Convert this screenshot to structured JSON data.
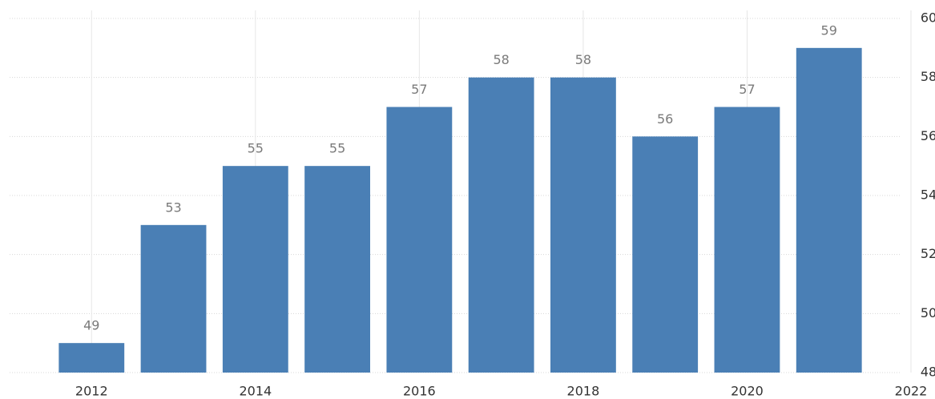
{
  "chart_data": {
    "type": "bar",
    "x": [
      2012,
      2013,
      2014,
      2015,
      2016,
      2017,
      2018,
      2019,
      2020,
      2021
    ],
    "values": [
      49,
      53,
      55,
      55,
      57,
      58,
      58,
      56,
      57,
      59
    ],
    "color": "#4a7fb5",
    "xlim": [
      2011,
      2022
    ],
    "xticks": [
      2012,
      2014,
      2016,
      2018,
      2020,
      2022
    ],
    "ylim": [
      48,
      60
    ],
    "yticks": [
      48,
      50,
      52,
      54,
      56,
      58,
      60
    ],
    "grid": true,
    "y_axis_side": "right"
  }
}
